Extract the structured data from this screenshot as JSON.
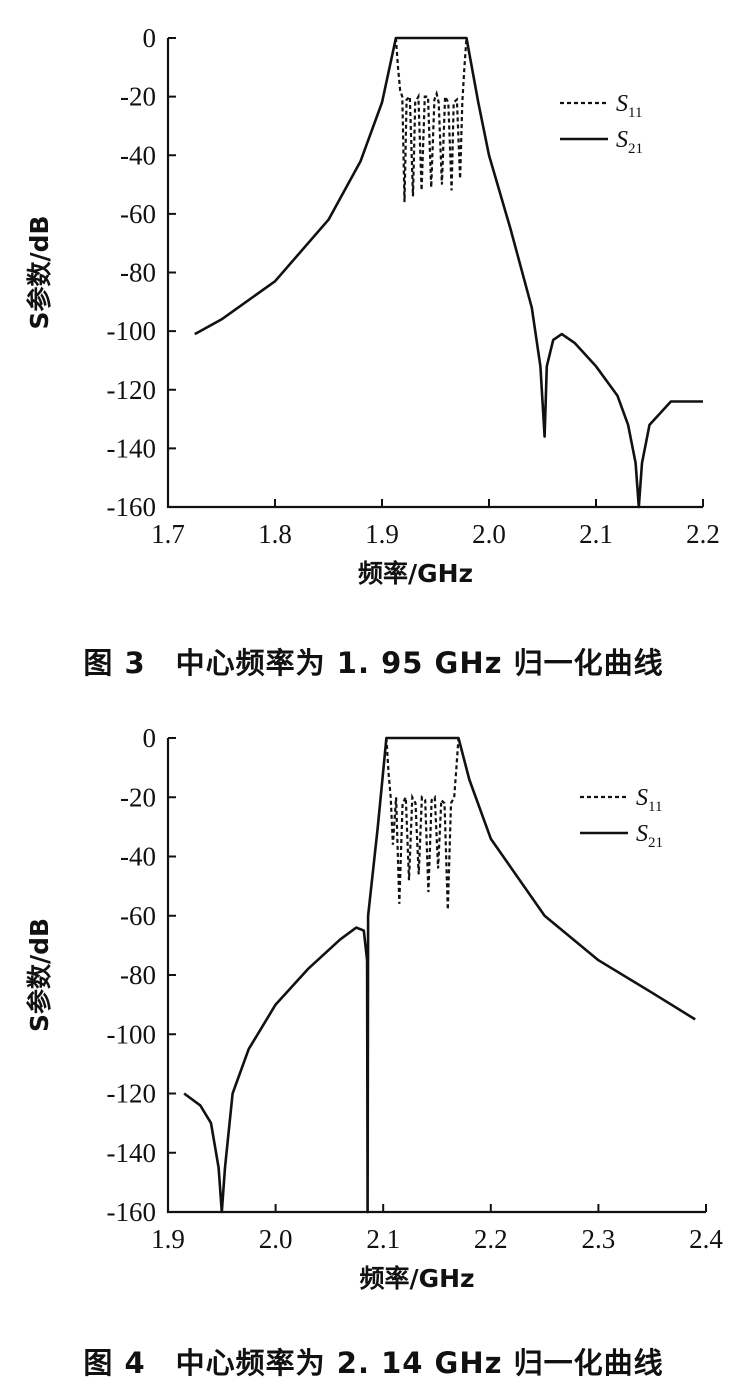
{
  "chart_data": [
    {
      "type": "line",
      "caption": "图 3　中心频率为 1. 95 GHz 归一化曲线",
      "xlabel": "频率/GHz",
      "ylabel": "S参数/dB",
      "xlim": [
        1.7,
        2.2
      ],
      "ylim": [
        -160,
        0
      ],
      "xticks": [
        "1.7",
        "1.8",
        "1.9",
        "2.0",
        "2.1",
        "2.2"
      ],
      "xtick_values": [
        1.7,
        1.8,
        1.9,
        2.0,
        2.1,
        2.2
      ],
      "yticks": [
        "0",
        "-20",
        "-40",
        "-60",
        "-80",
        "-100",
        "-120",
        "-140",
        "-160"
      ],
      "ytick_values": [
        0,
        -20,
        -40,
        -60,
        -80,
        -100,
        -120,
        -140,
        -160
      ],
      "legend": {
        "position": "top-right",
        "s11": "11",
        "s21": "21",
        "symbol": "S"
      },
      "series": [
        {
          "name": "S11",
          "style": "dashed",
          "x": [
            1.913,
            1.915,
            1.917,
            1.919,
            1.921,
            1.923,
            1.926,
            1.929,
            1.931,
            1.934,
            1.937,
            1.94,
            1.943,
            1.946,
            1.949,
            1.951,
            1.953,
            1.956,
            1.959,
            1.962,
            1.965,
            1.967,
            1.97,
            1.973,
            1.975,
            1.977,
            1.979
          ],
          "y": [
            0,
            -10,
            -18,
            -20,
            -56,
            -21,
            -20,
            -54,
            -22,
            -20,
            -52,
            -20,
            -20,
            -51,
            -21,
            -19,
            -22,
            -50,
            -20,
            -22,
            -52,
            -22,
            -21,
            -48,
            -22,
            -10,
            0
          ]
        },
        {
          "name": "S21",
          "style": "solid",
          "x": [
            1.725,
            1.75,
            1.8,
            1.85,
            1.88,
            1.9,
            1.913,
            1.979,
            1.99,
            2.0,
            2.02,
            2.04,
            2.048,
            2.052,
            2.054,
            2.06,
            2.068,
            2.08,
            2.1,
            2.12,
            2.13,
            2.137,
            2.14,
            2.143,
            2.15,
            2.17,
            2.2
          ],
          "y": [
            -101,
            -96,
            -83,
            -62,
            -42,
            -22,
            0,
            0,
            -22,
            -40,
            -65,
            -92,
            -112,
            -136,
            -112,
            -103,
            -101,
            -104,
            -112,
            -122,
            -132,
            -145,
            -160,
            -145,
            -132,
            -124,
            -124
          ]
        }
      ]
    },
    {
      "type": "line",
      "caption": "图 4　中心频率为 2. 14 GHz 归一化曲线",
      "xlabel": "频率/GHz",
      "ylabel": "S参数/dB",
      "xlim": [
        1.9,
        2.4
      ],
      "ylim": [
        -160,
        0
      ],
      "xticks": [
        "1.9",
        "2.0",
        "2.1",
        "2.2",
        "2.3",
        "2.4"
      ],
      "xtick_values": [
        1.9,
        2.0,
        2.1,
        2.2,
        2.3,
        2.4
      ],
      "yticks": [
        "0",
        "-20",
        "-40",
        "-60",
        "-80",
        "-100",
        "-120",
        "-140",
        "-160"
      ],
      "ytick_values": [
        0,
        -20,
        -40,
        -60,
        -80,
        -100,
        -120,
        -140,
        -160
      ],
      "legend": {
        "position": "top-right",
        "s11": "11",
        "s21": "21",
        "symbol": "S"
      },
      "series": [
        {
          "name": "S11",
          "style": "dashed",
          "x": [
            2.103,
            2.105,
            2.107,
            2.109,
            2.112,
            2.115,
            2.118,
            2.121,
            2.124,
            2.127,
            2.13,
            2.133,
            2.136,
            2.139,
            2.142,
            2.145,
            2.148,
            2.151,
            2.154,
            2.157,
            2.16,
            2.163,
            2.166,
            2.168,
            2.17
          ],
          "y": [
            0,
            -12,
            -20,
            -36,
            -20,
            -56,
            -22,
            -20,
            -48,
            -20,
            -22,
            -46,
            -20,
            -21,
            -52,
            -21,
            -20,
            -44,
            -21,
            -22,
            -58,
            -22,
            -20,
            -10,
            0
          ]
        },
        {
          "name": "S21",
          "style": "solid",
          "x": [
            1.915,
            1.93,
            1.94,
            1.947,
            1.95,
            1.953,
            1.96,
            1.975,
            2.0,
            2.03,
            2.06,
            2.075,
            2.082,
            2.085,
            2.0855,
            2.086,
            2.095,
            2.103,
            2.17,
            2.18,
            2.2,
            2.25,
            2.3,
            2.35,
            2.39
          ],
          "y": [
            -120,
            -124,
            -130,
            -145,
            -160,
            -145,
            -120,
            -105,
            -90,
            -78,
            -68,
            -64,
            -65,
            -75,
            -160,
            -60,
            -30,
            0,
            0,
            -14,
            -34,
            -60,
            -75,
            -86,
            -95
          ]
        }
      ]
    }
  ]
}
